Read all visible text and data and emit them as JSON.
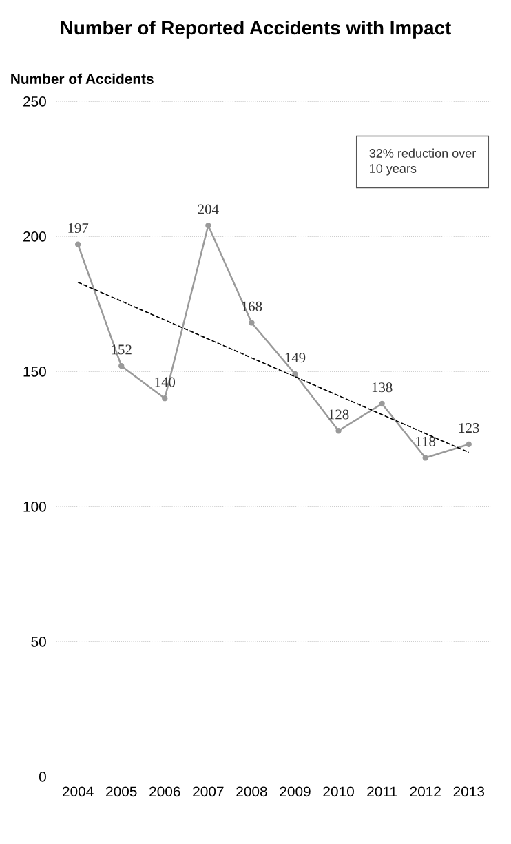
{
  "chart_data": {
    "type": "line",
    "title": "Number of Reported Accidents with Impact",
    "ylabel": "Number of Accidents",
    "categories": [
      "2004",
      "2005",
      "2006",
      "2007",
      "2008",
      "2009",
      "2010",
      "2011",
      "2012",
      "2013"
    ],
    "series": [
      {
        "color": "#9a9a9a",
        "values": [
          197,
          152,
          140,
          204,
          168,
          149,
          128,
          138,
          118,
          123
        ],
        "value_labels": [
          "197",
          "152",
          "140",
          "204",
          "168",
          "149",
          "128",
          "138",
          "118",
          "123"
        ],
        "marker": "circle",
        "line_style": "solid"
      },
      {
        "type": "line",
        "color": "#000000",
        "values": [
          183,
          176,
          169,
          162,
          155,
          148,
          141,
          134,
          127,
          120
        ],
        "line_style": "dashed",
        "marker": "none"
      }
    ],
    "ylim": [
      0,
      250
    ],
    "yticks": [
      0,
      50,
      100,
      150,
      200,
      250
    ],
    "grid": "y",
    "annotations": [
      "32% reduction over\n10 years"
    ]
  }
}
